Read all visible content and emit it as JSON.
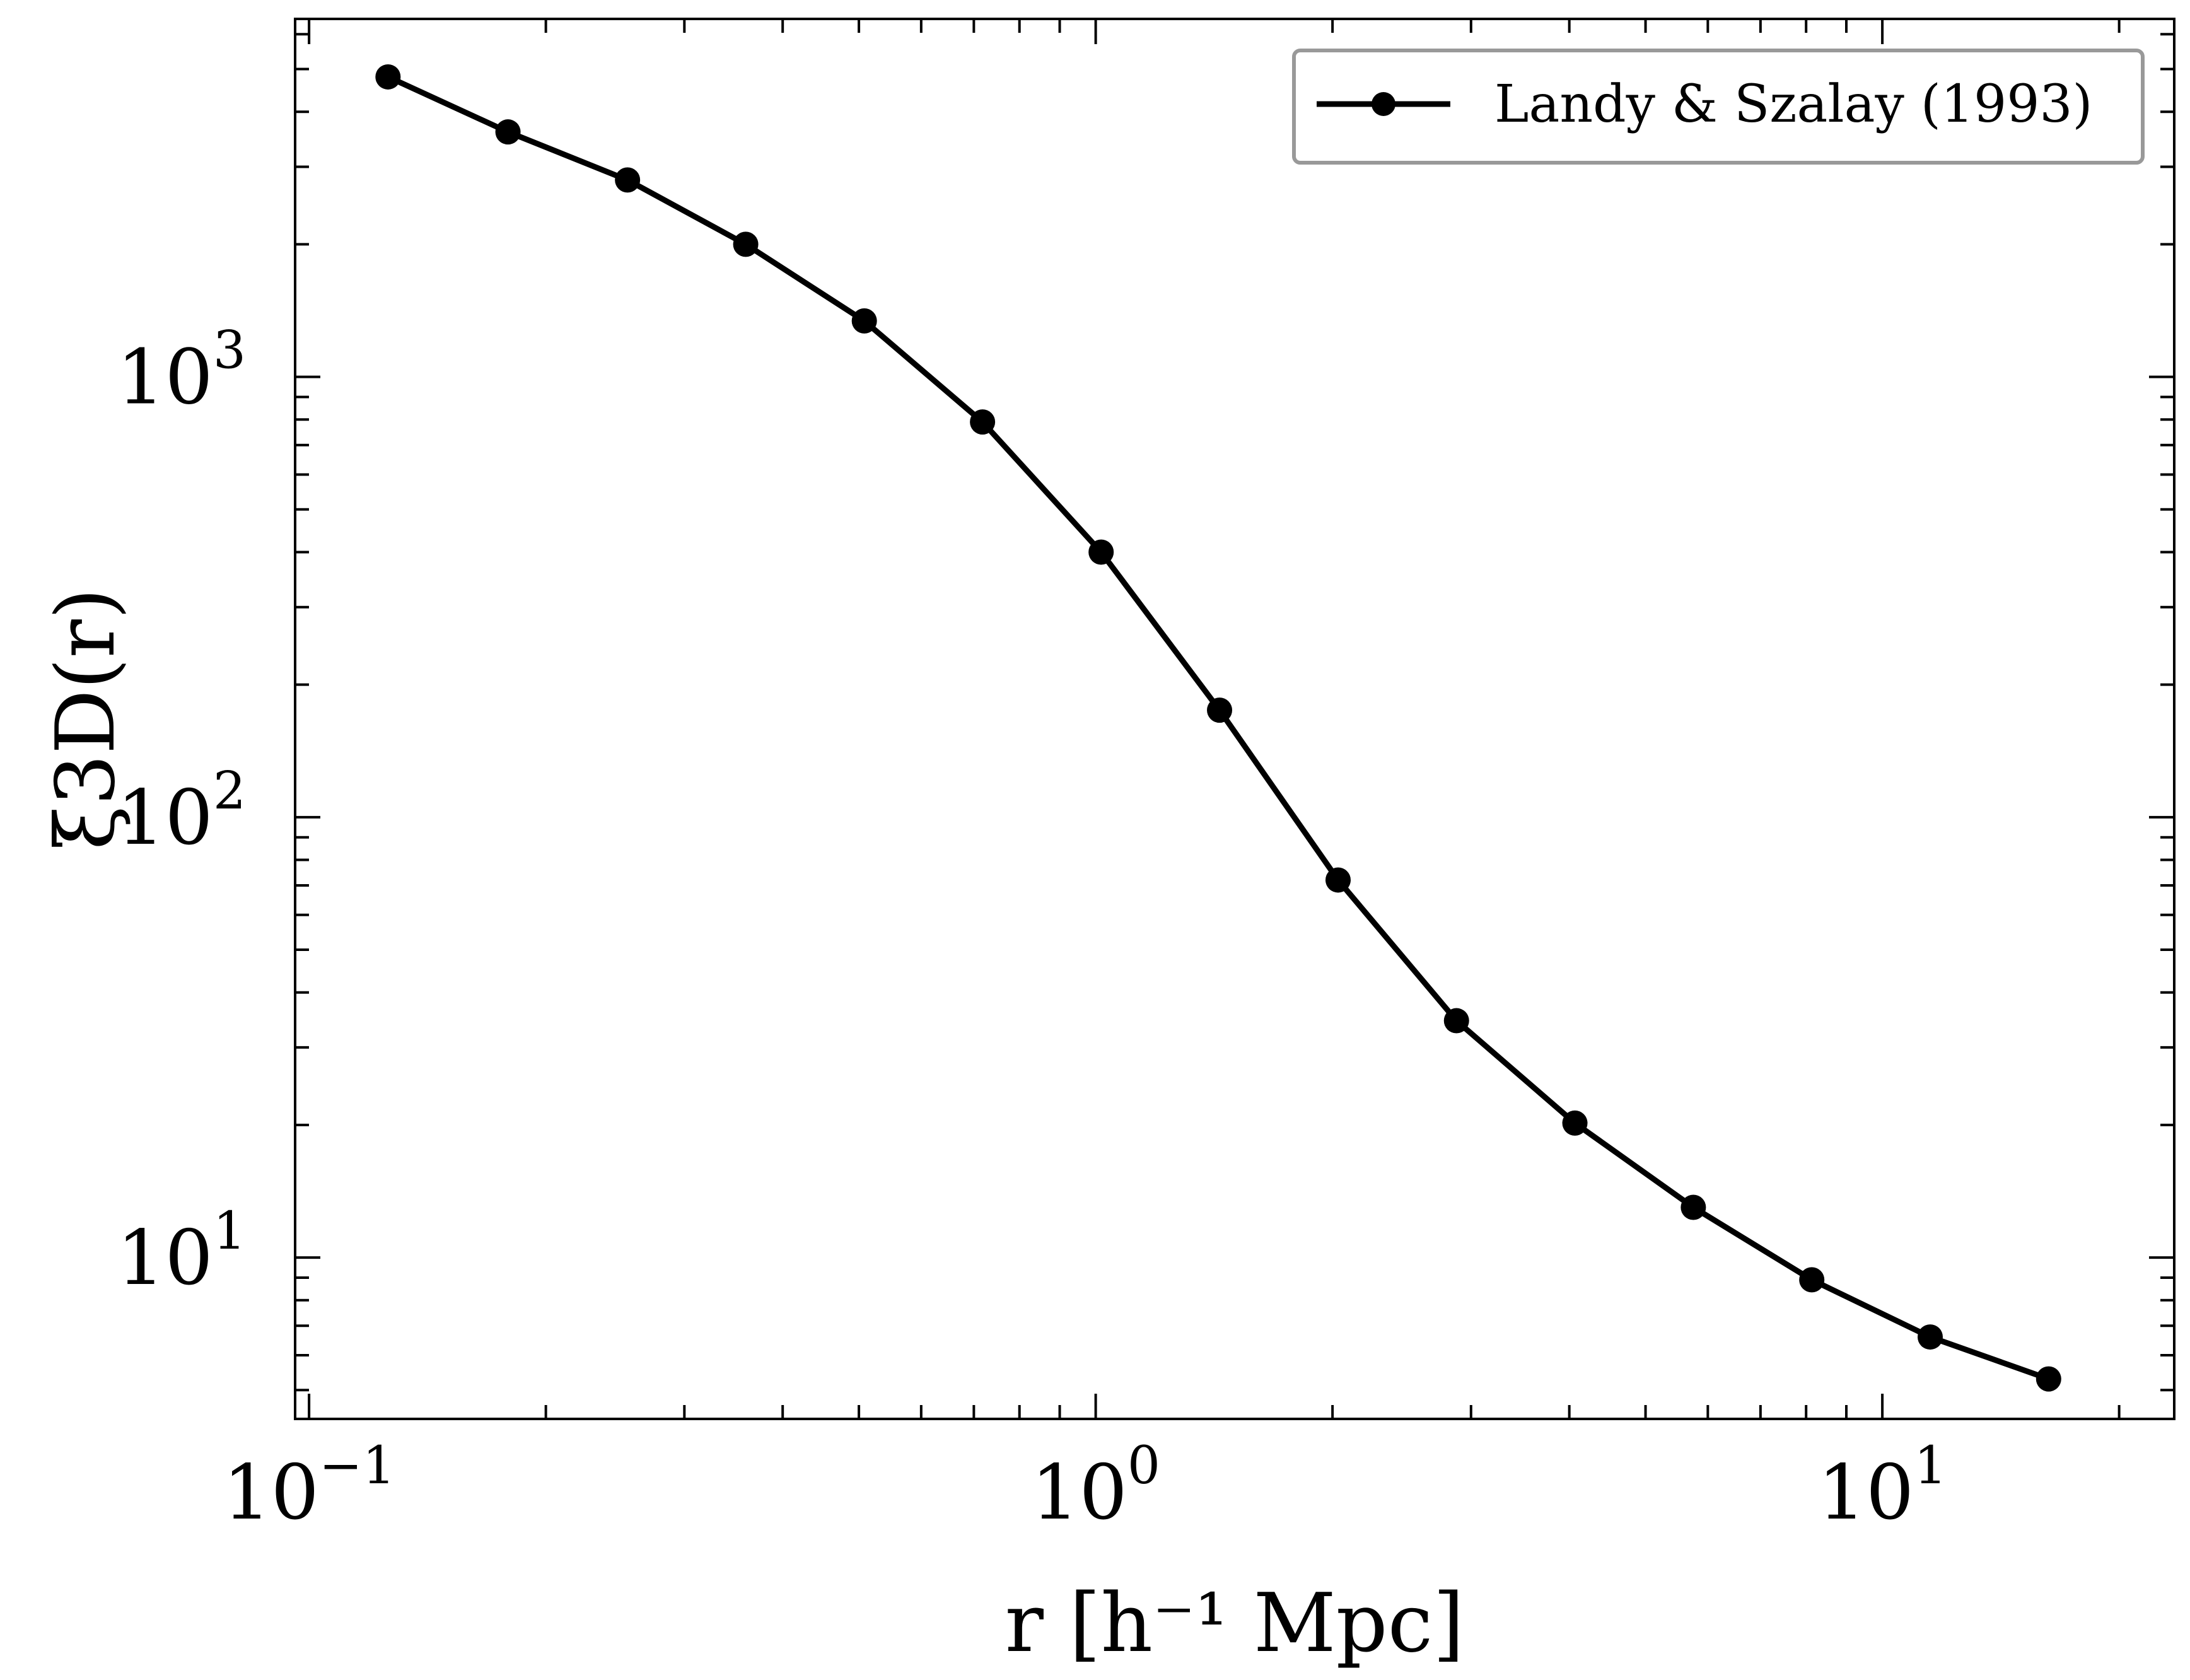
{
  "chart_data": {
    "type": "line",
    "xscale": "log",
    "yscale": "log",
    "xlim": [
      0.096,
      23.5
    ],
    "ylim": [
      4.3,
      6500
    ],
    "xlabel": "r [h⁻¹ Mpc]",
    "ylabel": "ξ3D(r)",
    "x_ticks": [
      {
        "value": 0.1,
        "base": "10",
        "exp": "−1"
      },
      {
        "value": 1,
        "base": "10",
        "exp": "0"
      },
      {
        "value": 10,
        "base": "10",
        "exp": "1"
      }
    ],
    "y_ticks": [
      {
        "value": 10,
        "base": "10",
        "exp": "1"
      },
      {
        "value": 100,
        "base": "10",
        "exp": "2"
      },
      {
        "value": 1000,
        "base": "10",
        "exp": "3"
      }
    ],
    "legend": {
      "position": "top-right"
    },
    "series": [
      {
        "name": "Landy & Szalay (1993)",
        "color": "#000000",
        "marker": "circle",
        "x": [
          0.126,
          0.179,
          0.254,
          0.359,
          0.508,
          0.718,
          1.016,
          1.437,
          2.033,
          2.875,
          4.066,
          5.751,
          8.134,
          11.504,
          16.27
        ],
        "y": [
          4800,
          3600,
          2800,
          2000,
          1340,
          790,
          400,
          175,
          72,
          34.5,
          20.2,
          13.0,
          8.9,
          6.6,
          5.3
        ]
      }
    ]
  }
}
